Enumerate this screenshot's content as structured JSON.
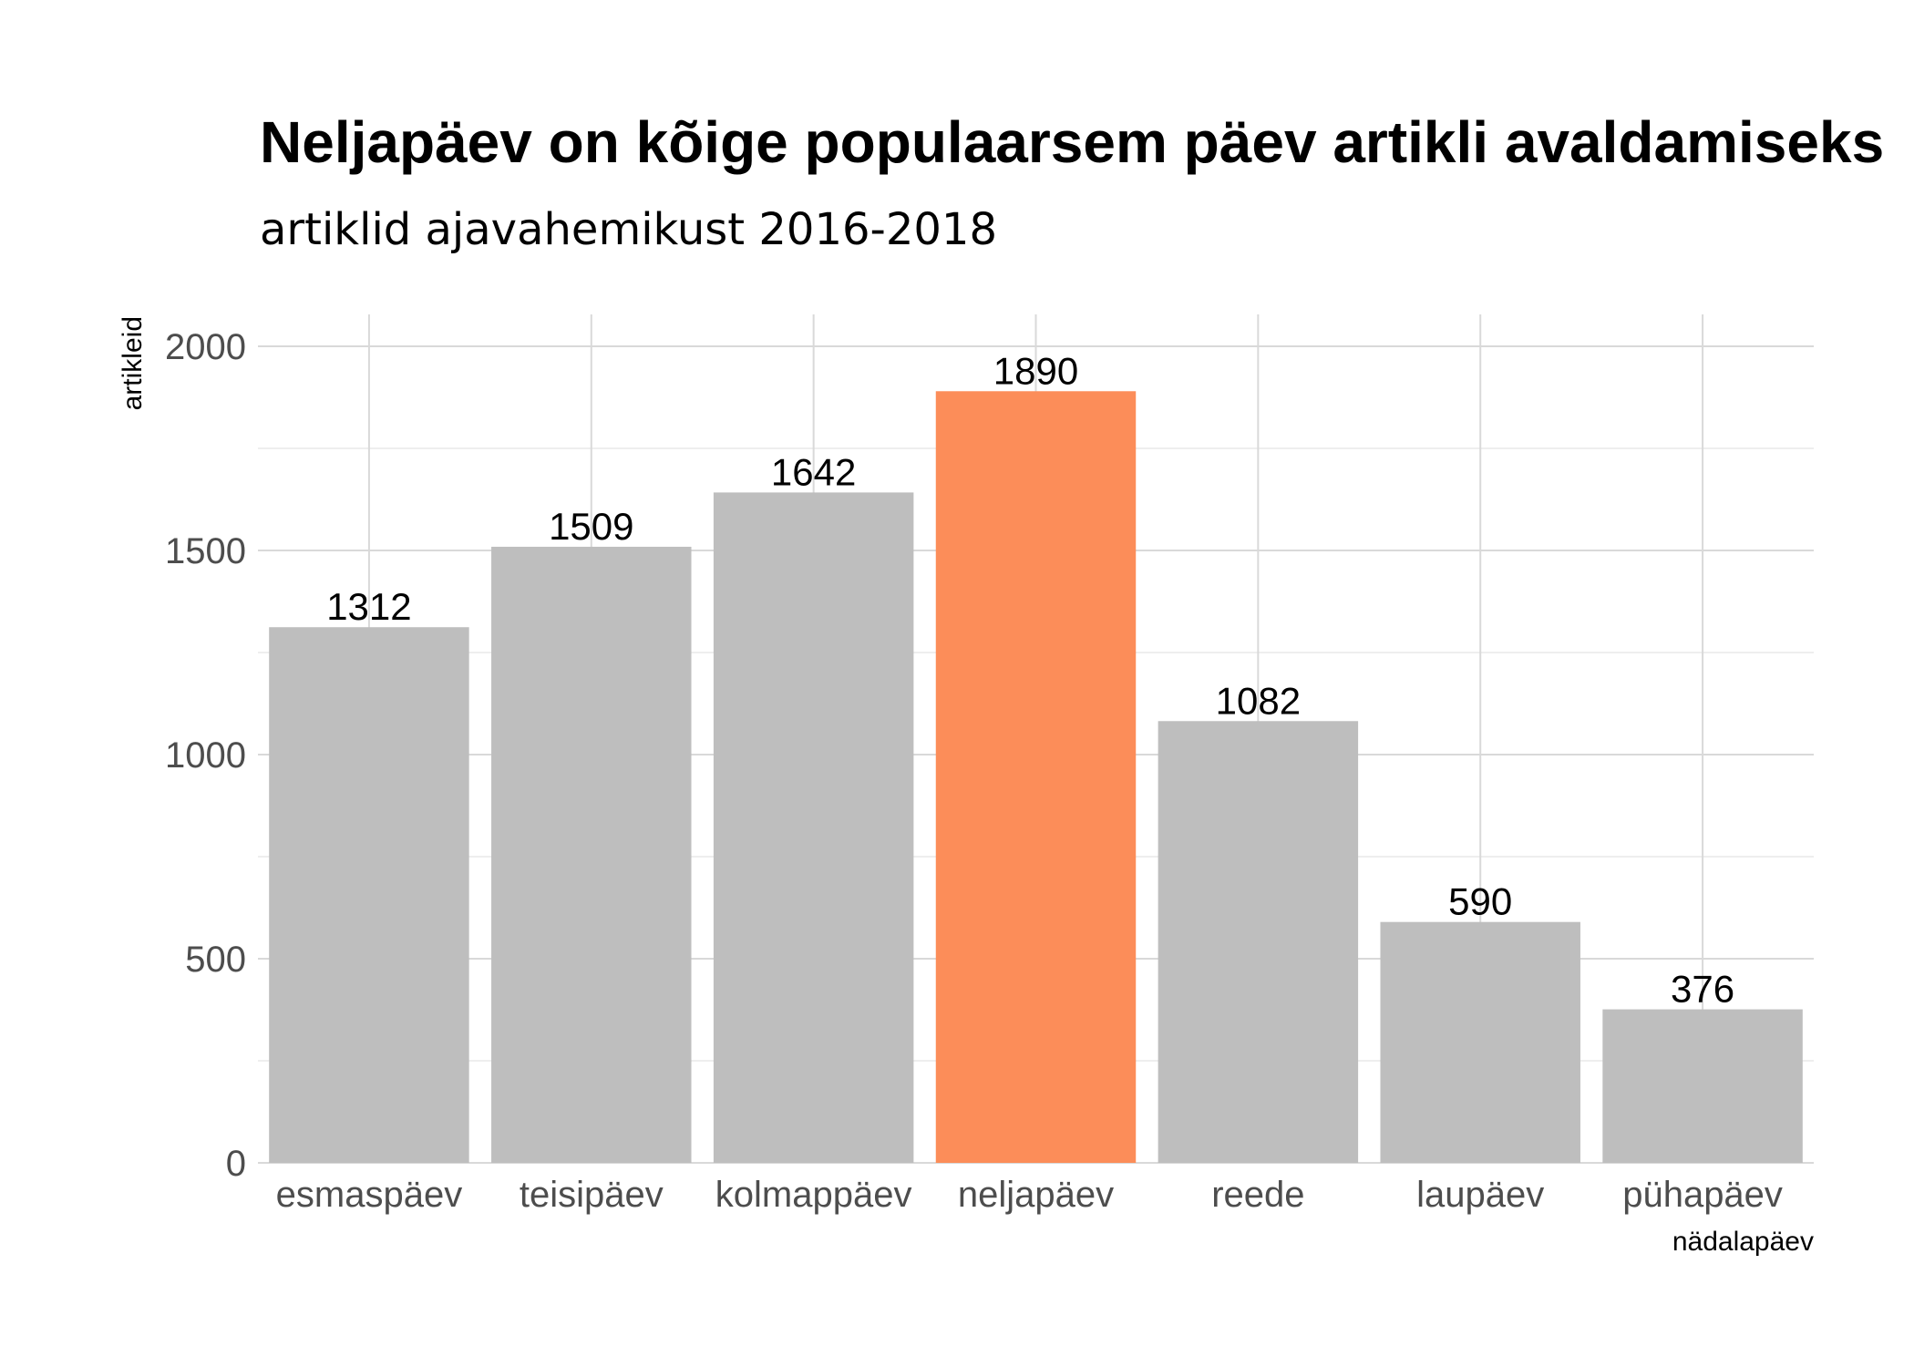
{
  "chart_data": {
    "type": "bar",
    "title": "Neljapäev on kõige populaarsem päev artikli avaldamiseks",
    "subtitle": "artiklid ajavahemikust 2016-2018",
    "xlabel": "nädalapäev",
    "ylabel": "artikleid",
    "categories": [
      "esmaspäev",
      "teisipäev",
      "kolmappäev",
      "neljapäev",
      "reede",
      "laupäev",
      "pühapäev"
    ],
    "values": [
      1312,
      1509,
      1642,
      1890,
      1082,
      590,
      376
    ],
    "ylim": [
      0,
      2000
    ],
    "yticks": [
      "0",
      "500",
      "1000",
      "1500",
      "2000"
    ],
    "grid": true,
    "highlight_category": "neljapäev",
    "colors": {
      "default": "#bebebe",
      "highlight": "#fc8d59"
    }
  }
}
